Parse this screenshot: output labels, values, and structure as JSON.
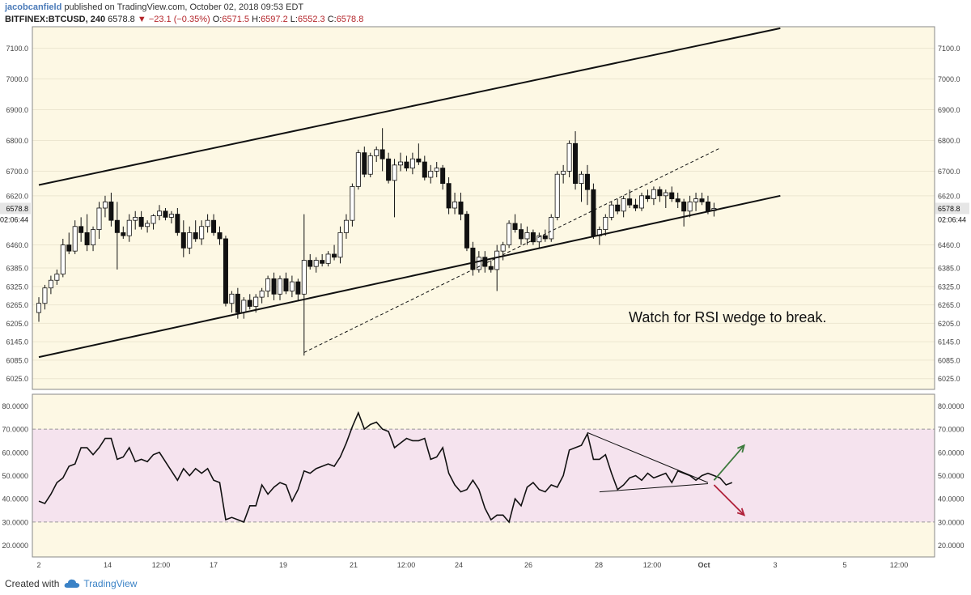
{
  "header": {
    "author": "jacobcanfield",
    "published": "published on TradingView.com, October 02, 2018 09:53 EDT",
    "symbol": "BITFINEX:BTCUSD, 240",
    "last": "6578.8",
    "change": "−23.1 (−0.35%)",
    "o_label": "O:",
    "o_val": "6571.5",
    "h_label": "H:",
    "h_val": "6597.2",
    "l_label": "L:",
    "l_val": "6552.3",
    "c_label": "C:",
    "c_val": "6578.8"
  },
  "footer": {
    "created_with": "Created with",
    "brand": "TradingView"
  },
  "colors": {
    "price_bg": "#fdf8e4",
    "rsi_band": "#f5e3ee",
    "rsi_down_arrow": "#b0213a",
    "rsi_up_arrow": "#3d7a3d",
    "price_badge": "#e6e6e6"
  },
  "chart_data": [
    {
      "type": "candlestick",
      "symbol": "BITFINEX:BTCUSD",
      "timeframe": "240",
      "ylim": [
        5990,
        7170
      ],
      "y_ticks": [
        "7100.0",
        "7000.0",
        "6900.0",
        "6800.0",
        "6700.0",
        "6620.0",
        "6460.0",
        "6385.0",
        "6325.0",
        "6265.0",
        "6205.0",
        "6145.0",
        "6085.0",
        "6025.0"
      ],
      "x_ticks": [
        "2",
        "14",
        "12:00",
        "17",
        "19",
        "21",
        "12:00",
        "24",
        "26",
        "28",
        "12:00",
        "Oct",
        "3",
        "5",
        "12:00"
      ],
      "last_price": "6578.8",
      "countdown": "02:06:44",
      "annotation": "Watch for RSI wedge to break.",
      "ohlc": [
        [
          6240,
          6290,
          6210,
          6270
        ],
        [
          6270,
          6330,
          6250,
          6320
        ],
        [
          6320,
          6360,
          6300,
          6345
        ],
        [
          6345,
          6380,
          6330,
          6365
        ],
        [
          6365,
          6480,
          6355,
          6460
        ],
        [
          6460,
          6500,
          6430,
          6440
        ],
        [
          6440,
          6540,
          6430,
          6520
        ],
        [
          6520,
          6550,
          6470,
          6500
        ],
        [
          6500,
          6560,
          6440,
          6460
        ],
        [
          6460,
          6520,
          6440,
          6510
        ],
        [
          6510,
          6600,
          6480,
          6580
        ],
        [
          6580,
          6620,
          6550,
          6600
        ],
        [
          6600,
          6630,
          6520,
          6540
        ],
        [
          6540,
          6600,
          6380,
          6500
        ],
        [
          6500,
          6520,
          6480,
          6490
        ],
        [
          6490,
          6560,
          6470,
          6540
        ],
        [
          6540,
          6570,
          6510,
          6550
        ],
        [
          6550,
          6570,
          6510,
          6520
        ],
        [
          6520,
          6540,
          6500,
          6530
        ],
        [
          6530,
          6560,
          6510,
          6555
        ],
        [
          6555,
          6590,
          6540,
          6570
        ],
        [
          6570,
          6580,
          6540,
          6550
        ],
        [
          6550,
          6570,
          6530,
          6560
        ],
        [
          6560,
          6580,
          6490,
          6500
        ],
        [
          6500,
          6540,
          6420,
          6450
        ],
        [
          6450,
          6520,
          6430,
          6500
        ],
        [
          6500,
          6540,
          6470,
          6480
        ],
        [
          6480,
          6540,
          6460,
          6520
        ],
        [
          6520,
          6560,
          6500,
          6540
        ],
        [
          6540,
          6560,
          6490,
          6500
        ],
        [
          6500,
          6520,
          6460,
          6480
        ],
        [
          6480,
          6490,
          6260,
          6270
        ],
        [
          6270,
          6310,
          6240,
          6300
        ],
        [
          6300,
          6320,
          6220,
          6240
        ],
        [
          6240,
          6290,
          6220,
          6280
        ],
        [
          6280,
          6300,
          6250,
          6260
        ],
        [
          6260,
          6300,
          6240,
          6290
        ],
        [
          6290,
          6320,
          6270,
          6310
        ],
        [
          6310,
          6360,
          6290,
          6350
        ],
        [
          6350,
          6370,
          6280,
          6300
        ],
        [
          6300,
          6360,
          6280,
          6350
        ],
        [
          6350,
          6370,
          6300,
          6310
        ],
        [
          6310,
          6360,
          6290,
          6340
        ],
        [
          6340,
          6350,
          6280,
          6300
        ],
        [
          6300,
          6560,
          6100,
          6410
        ],
        [
          6410,
          6430,
          6380,
          6390
        ],
        [
          6390,
          6420,
          6370,
          6410
        ],
        [
          6410,
          6430,
          6390,
          6400
        ],
        [
          6400,
          6440,
          6390,
          6430
        ],
        [
          6430,
          6460,
          6410,
          6420
        ],
        [
          6420,
          6520,
          6400,
          6500
        ],
        [
          6500,
          6560,
          6480,
          6540
        ],
        [
          6540,
          6660,
          6520,
          6650
        ],
        [
          6650,
          6770,
          6640,
          6760
        ],
        [
          6760,
          6780,
          6680,
          6690
        ],
        [
          6690,
          6760,
          6680,
          6750
        ],
        [
          6750,
          6780,
          6730,
          6770
        ],
        [
          6770,
          6840,
          6700,
          6740
        ],
        [
          6740,
          6760,
          6660,
          6670
        ],
        [
          6670,
          6740,
          6550,
          6720
        ],
        [
          6720,
          6760,
          6700,
          6730
        ],
        [
          6730,
          6750,
          6700,
          6710
        ],
        [
          6710,
          6760,
          6690,
          6740
        ],
        [
          6740,
          6790,
          6720,
          6730
        ],
        [
          6730,
          6750,
          6670,
          6680
        ],
        [
          6680,
          6720,
          6660,
          6700
        ],
        [
          6700,
          6730,
          6680,
          6710
        ],
        [
          6710,
          6720,
          6640,
          6660
        ],
        [
          6660,
          6680,
          6560,
          6580
        ],
        [
          6580,
          6630,
          6560,
          6600
        ],
        [
          6600,
          6630,
          6540,
          6560
        ],
        [
          6560,
          6570,
          6440,
          6450
        ],
        [
          6450,
          6470,
          6360,
          6380
        ],
        [
          6380,
          6440,
          6370,
          6420
        ],
        [
          6420,
          6440,
          6370,
          6390
        ],
        [
          6390,
          6410,
          6370,
          6380
        ],
        [
          6380,
          6460,
          6310,
          6440
        ],
        [
          6440,
          6470,
          6410,
          6460
        ],
        [
          6460,
          6540,
          6450,
          6530
        ],
        [
          6530,
          6560,
          6500,
          6510
        ],
        [
          6510,
          6530,
          6460,
          6480
        ],
        [
          6480,
          6520,
          6460,
          6500
        ],
        [
          6500,
          6510,
          6460,
          6470
        ],
        [
          6470,
          6500,
          6450,
          6490
        ],
        [
          6490,
          6510,
          6470,
          6480
        ],
        [
          6480,
          6560,
          6470,
          6550
        ],
        [
          6550,
          6700,
          6540,
          6690
        ],
        [
          6690,
          6720,
          6660,
          6700
        ],
        [
          6700,
          6800,
          6680,
          6790
        ],
        [
          6790,
          6830,
          6640,
          6660
        ],
        [
          6660,
          6700,
          6600,
          6690
        ],
        [
          6690,
          6720,
          6590,
          6640
        ],
        [
          6640,
          6660,
          6480,
          6490
        ],
        [
          6490,
          6520,
          6460,
          6510
        ],
        [
          6510,
          6560,
          6490,
          6550
        ],
        [
          6550,
          6600,
          6540,
          6590
        ],
        [
          6590,
          6610,
          6560,
          6570
        ],
        [
          6570,
          6620,
          6550,
          6610
        ],
        [
          6610,
          6640,
          6580,
          6590
        ],
        [
          6590,
          6610,
          6570,
          6580
        ],
        [
          6580,
          6630,
          6570,
          6620
        ],
        [
          6620,
          6640,
          6600,
          6610
        ],
        [
          6610,
          6650,
          6590,
          6640
        ],
        [
          6640,
          6650,
          6600,
          6620
        ],
        [
          6620,
          6640,
          6580,
          6630
        ],
        [
          6630,
          6650,
          6600,
          6610
        ],
        [
          6610,
          6630,
          6580,
          6600
        ],
        [
          6600,
          6610,
          6520,
          6570
        ],
        [
          6570,
          6620,
          6550,
          6600
        ],
        [
          6600,
          6630,
          6570,
          6610
        ],
        [
          6610,
          6630,
          6590,
          6600
        ],
        [
          6600,
          6620,
          6560,
          6570
        ],
        [
          6571.5,
          6597.2,
          6552.3,
          6578.8
        ]
      ],
      "trendlines": [
        {
          "name": "channel-top",
          "style": "solid",
          "from": [
            0,
            6655
          ],
          "to": [
            123,
            7165
          ]
        },
        {
          "name": "channel-bottom",
          "style": "solid",
          "from": [
            0,
            6095
          ],
          "to": [
            123,
            6620
          ]
        },
        {
          "name": "dashed-support",
          "style": "dashed",
          "from": [
            44,
            6110
          ],
          "to": [
            113,
            6775
          ]
        }
      ]
    },
    {
      "type": "line",
      "name": "RSI",
      "ylim": [
        15,
        85
      ],
      "y_ticks": [
        "80.0000",
        "70.0000",
        "60.0000",
        "50.0000",
        "40.0000",
        "30.0000",
        "20.0000"
      ],
      "band": [
        30,
        70
      ],
      "values": [
        39,
        38,
        42,
        47,
        49,
        54,
        55,
        62,
        62,
        59,
        62,
        66,
        66,
        57,
        58,
        62,
        56,
        57,
        56,
        59,
        60,
        56,
        52,
        48,
        53,
        50,
        53,
        51,
        53,
        48,
        47,
        31,
        32,
        31,
        30,
        37,
        37,
        46,
        42,
        45,
        47,
        46,
        39,
        44,
        52,
        51,
        53,
        54,
        55,
        54,
        58,
        64,
        71,
        77,
        70,
        72,
        73,
        70,
        69,
        62,
        64,
        66,
        65,
        65,
        66,
        57,
        58,
        62,
        51,
        46,
        43,
        44,
        48,
        44,
        36,
        31,
        33,
        33,
        30,
        40,
        37,
        45,
        47,
        44,
        43,
        46,
        45,
        50,
        61,
        62,
        63,
        68,
        57,
        57,
        59,
        51,
        44,
        46,
        49,
        50,
        48,
        51,
        49,
        50,
        51,
        47,
        52,
        51,
        50,
        48,
        50,
        51,
        50,
        49,
        46,
        47
      ],
      "wedge_lines": [
        {
          "from": [
            91,
            68.5
          ],
          "to": [
            111,
            47
          ]
        },
        {
          "from": [
            93,
            43
          ],
          "to": [
            111,
            46.5
          ]
        }
      ],
      "arrows": [
        {
          "direction": "up",
          "from": [
            112,
            48
          ],
          "to": [
            117,
            63
          ]
        },
        {
          "direction": "down",
          "from": [
            112,
            46
          ],
          "to": [
            117,
            33
          ]
        }
      ]
    }
  ]
}
